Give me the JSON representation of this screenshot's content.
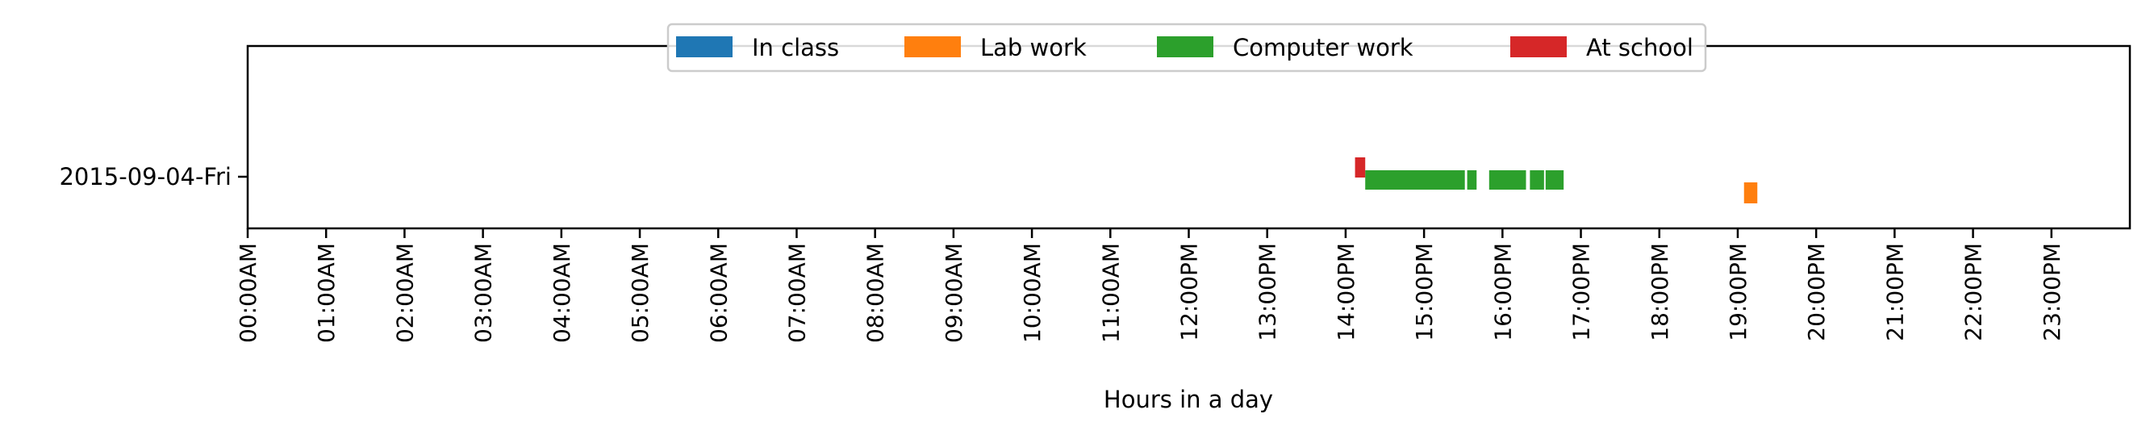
{
  "chart_data": {
    "type": "timeline",
    "xlabel": "Hours in a day",
    "ylabel": "",
    "xlim": [
      0,
      24
    ],
    "x_unit": "hours",
    "x_ticks": [
      0,
      1,
      2,
      3,
      4,
      5,
      6,
      7,
      8,
      9,
      10,
      11,
      12,
      13,
      14,
      15,
      16,
      17,
      18,
      19,
      20,
      21,
      22,
      23
    ],
    "x_tick_labels": [
      "00:00AM",
      "01:00AM",
      "02:00AM",
      "03:00AM",
      "04:00AM",
      "05:00AM",
      "06:00AM",
      "07:00AM",
      "08:00AM",
      "09:00AM",
      "10:00AM",
      "11:00AM",
      "12:00PM",
      "13:00PM",
      "14:00PM",
      "15:00PM",
      "16:00PM",
      "17:00PM",
      "18:00PM",
      "19:00PM",
      "20:00PM",
      "21:00PM",
      "22:00PM",
      "23:00PM"
    ],
    "categories": [
      "2015-09-04-Fri"
    ],
    "legend": {
      "placement": "top-center",
      "entries": [
        "In class",
        "Lab work",
        "Computer work",
        "At school"
      ]
    },
    "series": [
      {
        "name": "In class",
        "color": "#1f77b4",
        "intervals": []
      },
      {
        "name": "Lab work",
        "color": "#ff7f0e",
        "intervals": [
          {
            "category": "2015-09-04-Fri",
            "start": 19.08,
            "end": 19.25
          }
        ]
      },
      {
        "name": "Computer work",
        "color": "#2ca02c",
        "intervals": [
          {
            "category": "2015-09-04-Fri",
            "start": 14.25,
            "end": 15.52
          },
          {
            "category": "2015-09-04-Fri",
            "start": 15.55,
            "end": 15.67
          },
          {
            "category": "2015-09-04-Fri",
            "start": 15.83,
            "end": 16.3
          },
          {
            "category": "2015-09-04-Fri",
            "start": 16.35,
            "end": 16.53
          },
          {
            "category": "2015-09-04-Fri",
            "start": 16.55,
            "end": 16.78
          }
        ]
      },
      {
        "name": "At school",
        "color": "#d62728",
        "intervals": [
          {
            "category": "2015-09-04-Fri",
            "start": 14.12,
            "end": 14.25
          }
        ]
      }
    ],
    "grid": false
  }
}
